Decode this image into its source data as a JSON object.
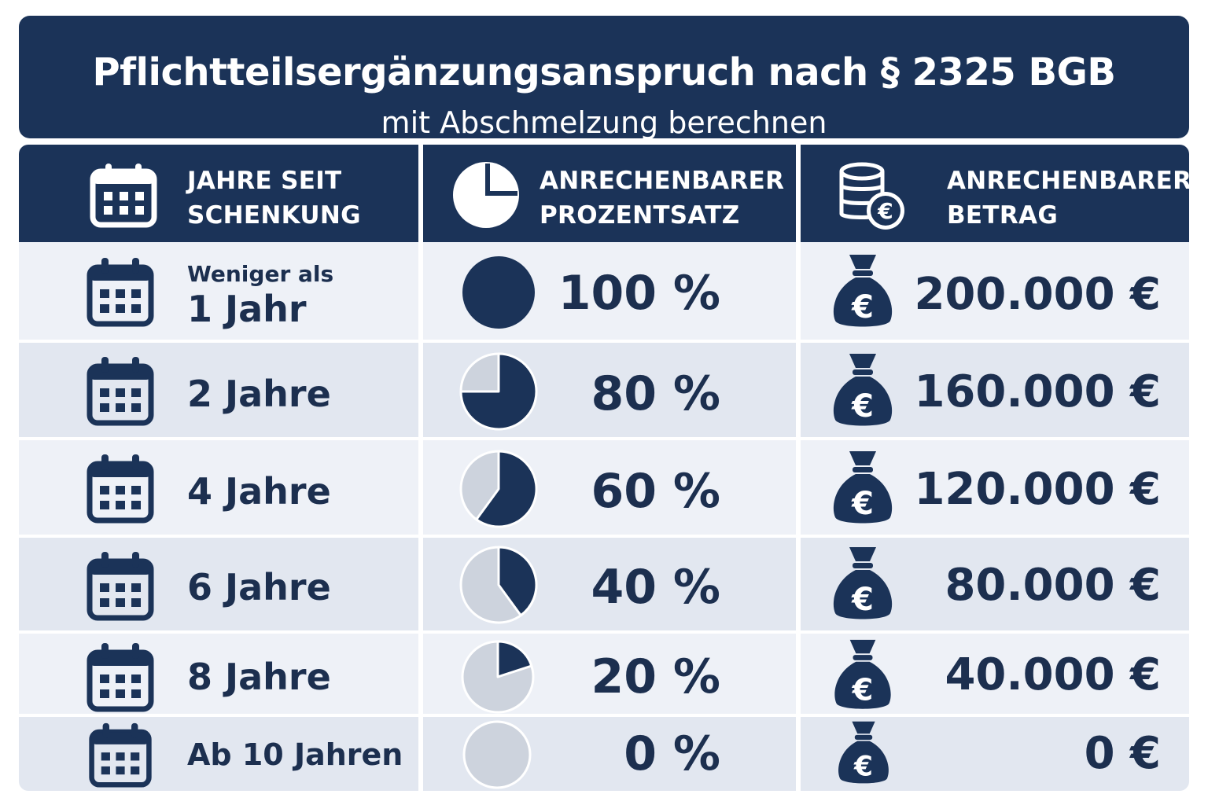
{
  "title": {
    "main": "Pflichtteilsergänzungsanspruch nach § 2325 BGB",
    "sub": "mit Abschmelzung berechnen"
  },
  "header": {
    "col1_line1": "JAHRE SEIT",
    "col1_line2": "SCHENKUNG",
    "col2_line1": "ANRECHENBARER",
    "col2_line2": "PROZENTSATZ",
    "col3_line1": "ANRECHENBARER",
    "col3_line2": "BETRAG"
  },
  "rows": [
    {
      "label_small": "Weniger als",
      "label": "1 Jahr",
      "percent_text": "100 %",
      "percent": 100,
      "amount": "200.000 €"
    },
    {
      "label": "2 Jahre",
      "percent_text": "80 %",
      "percent": 80,
      "amount": "160.000 €"
    },
    {
      "label": "4 Jahre",
      "percent_text": "60 %",
      "percent": 60,
      "amount": "120.000 €"
    },
    {
      "label": "6 Jahre",
      "percent_text": "40 %",
      "percent": 40,
      "amount": "80.000 €"
    },
    {
      "label": "8 Jahre",
      "percent_text": "20 %",
      "percent": 20,
      "amount": "40.000 €"
    },
    {
      "label": "Ab 10 Jahren",
      "percent_text": "0 %",
      "percent": 0,
      "amount": "0 €"
    }
  ],
  "colors": {
    "navy": "#1b3358",
    "pie_empty": "#cdd3dd",
    "row_light": "#eef1f7",
    "row_dark": "#e2e7f0"
  },
  "icons": {
    "header_col1": "calendar-icon",
    "header_col2": "pie-chart-icon",
    "header_col3": "coins-euro-icon",
    "row_col1": "calendar-icon",
    "row_col3": "money-bag-euro-icon"
  }
}
